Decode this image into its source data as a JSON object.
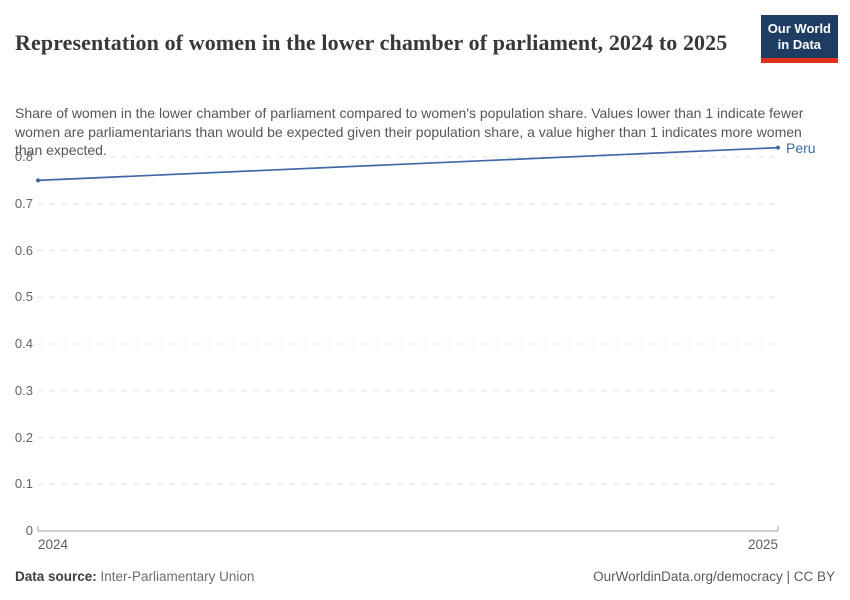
{
  "header": {
    "title": "Representation of women in the lower chamber of parliament, 2024 to 2025",
    "subtitle": "Share of women in the lower chamber of parliament compared to women's population share. Values lower than 1 indicate fewer women are parliamentarians than would be expected given their population share, a value higher than 1 indicates more women than expected.",
    "logo": {
      "line1": "Our World",
      "line2": "in Data",
      "bg_color": "#1d3d63",
      "bar_color": "#e0301e"
    }
  },
  "chart_data": {
    "type": "line",
    "title": "Representation of women in the lower chamber of parliament",
    "x": [
      2024,
      2025
    ],
    "xticks": [
      "2024",
      "2025"
    ],
    "series": [
      {
        "name": "Peru",
        "values": [
          0.75,
          0.82
        ],
        "color": "#3f69a6"
      }
    ],
    "ylim": [
      0,
      0.8
    ],
    "yticks": [
      0,
      0.1,
      0.2,
      0.3,
      0.4,
      0.5,
      0.6,
      0.7,
      0.8
    ],
    "xlabel": "",
    "ylabel": "",
    "grid": "horizontal-dashed",
    "grid_color": "#e0e0e0",
    "axis_color": "#9e9e9e",
    "legend_position": "end-of-line-label"
  },
  "footer": {
    "source_label": "Data source:",
    "source_value": " Inter-Parliamentary Union",
    "right_text": "OurWorldinData.org/democracy | CC BY"
  }
}
